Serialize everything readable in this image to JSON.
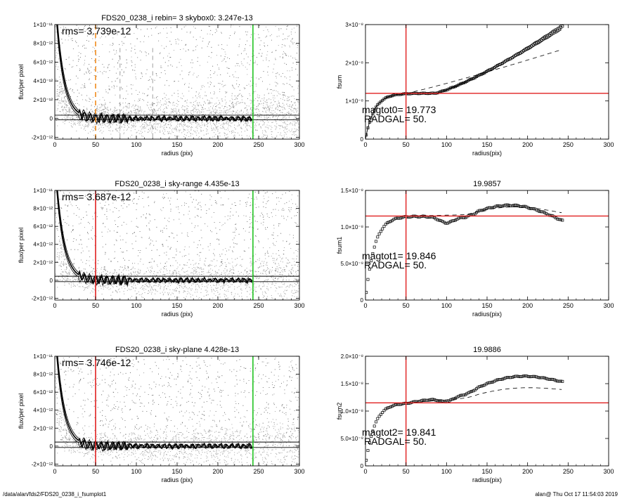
{
  "footer": {
    "path": "/data/alan/fds2/FDS20_0238_i_fsumplot1",
    "stamp": "alan@  Thu Oct 17 11:54:03 2019"
  },
  "colors": {
    "scatter": "#a9a9a9",
    "red": "#e02020",
    "green": "#22c422",
    "orange": "#f08a1c",
    "gray_dash": "#888888"
  },
  "chart_data": [
    {
      "id": "left1",
      "type": "scatter",
      "title": "FDS20_0238_i rebin= 3    skybox0:  3.247e-13",
      "xlabel": "radius (pix)",
      "ylabel": "flux/per pixel",
      "xlim": [
        0,
        300
      ],
      "ylim": [
        -2.2e-12,
        1e-11
      ],
      "xticks": [
        0,
        50,
        100,
        150,
        200,
        250,
        300
      ],
      "yticks": [
        {
          "v": -2e-12,
          "label": "-2×10⁻¹²"
        },
        {
          "v": 0,
          "label": "0"
        },
        {
          "v": 2e-12,
          "label": "2×10⁻¹²"
        },
        {
          "v": 4e-12,
          "label": "4×10⁻¹²"
        },
        {
          "v": 6e-12,
          "label": "6×10⁻¹²"
        },
        {
          "v": 8e-12,
          "label": "8×10⁻¹²"
        },
        {
          "v": 1e-11,
          "label": "1×10⁻¹¹"
        }
      ],
      "annotation": "rms= 3.739e-12",
      "band": [
        -1.5e-13,
        3.5e-13
      ],
      "vlines": [
        {
          "x": 50,
          "color": "orange",
          "style": "dashed"
        },
        {
          "x": 80,
          "color": "gray_dash",
          "style": "dashed",
          "ymin": 7.5e-12
        },
        {
          "x": 120,
          "color": "gray_dash",
          "style": "dashed",
          "ymin": 7.5e-12
        },
        {
          "x": 243,
          "color": "green",
          "style": "solid"
        }
      ]
    },
    {
      "id": "right1",
      "type": "scatter",
      "title": "",
      "xlabel": "radius(pix)",
      "ylabel": "fsum",
      "xlim": [
        0,
        300
      ],
      "ylim": [
        0,
        3e-08
      ],
      "xticks": [
        0,
        50,
        100,
        150,
        200,
        250,
        300
      ],
      "yticks": [
        {
          "v": 0,
          "label": "0"
        },
        {
          "v": 1e-08,
          "label": "1×10⁻⁸"
        },
        {
          "v": 2e-08,
          "label": "2×10⁻⁸"
        },
        {
          "v": 3e-08,
          "label": "3×10⁻⁸"
        }
      ],
      "hline": 1.2e-08,
      "vline": 50,
      "annotations": [
        "magtot0=  19.773",
        "RADGAL=     50."
      ],
      "plateau": 1.2e-08,
      "end_value": 2.95e-08,
      "dashed_end": 2.35e-08,
      "bump": 0
    },
    {
      "id": "left2",
      "type": "scatter",
      "title": "FDS20_0238_i sky-range  4.435e-13",
      "xlabel": "radius (pix)",
      "ylabel": "flux/per pixel",
      "xlim": [
        0,
        300
      ],
      "ylim": [
        -2.2e-12,
        1e-11
      ],
      "xticks": [
        0,
        50,
        100,
        150,
        200,
        250,
        300
      ],
      "yticks": [
        {
          "v": -2e-12,
          "label": "-2×10⁻¹²"
        },
        {
          "v": 0,
          "label": "0"
        },
        {
          "v": 2e-12,
          "label": "2×10⁻¹²"
        },
        {
          "v": 4e-12,
          "label": "4×10⁻¹²"
        },
        {
          "v": 6e-12,
          "label": "6×10⁻¹²"
        },
        {
          "v": 8e-12,
          "label": "8×10⁻¹²"
        },
        {
          "v": 1e-11,
          "label": "1×10⁻¹¹"
        }
      ],
      "annotation": "rms= 3.687e-12",
      "band": [
        -1.5e-13,
        4.5e-13
      ],
      "vlines": [
        {
          "x": 50,
          "color": "red",
          "style": "solid"
        },
        {
          "x": 243,
          "color": "green",
          "style": "solid"
        }
      ]
    },
    {
      "id": "right2",
      "type": "scatter",
      "title": "19.9857",
      "xlabel": "radius(pix)",
      "ylabel": "fsum1",
      "xlim": [
        0,
        300
      ],
      "ylim": [
        0,
        1.5e-08
      ],
      "xticks": [
        0,
        50,
        100,
        150,
        200,
        250,
        300
      ],
      "yticks": [
        {
          "v": 0,
          "label": "0"
        },
        {
          "v": 5e-09,
          "label": "5.0×10⁻⁹"
        },
        {
          "v": 1e-08,
          "label": "1.0×10⁻⁸"
        },
        {
          "v": 1.5e-08,
          "label": "1.5×10⁻⁸"
        }
      ],
      "hline": 1.15e-08,
      "vline": 50,
      "annotations": [
        "magtot1=  19.846",
        "RADGAL=     50."
      ],
      "plateau": 1.15e-08,
      "end_value": 1.1e-08,
      "dashed_end": 1.2e-08,
      "bump": 1.8e-09
    },
    {
      "id": "left3",
      "type": "scatter",
      "title": "FDS20_0238_i sky-plane  4.428e-13",
      "xlabel": "radius (pix)",
      "ylabel": "flux/per pixel",
      "xlim": [
        0,
        300
      ],
      "ylim": [
        -2.2e-12,
        1e-11
      ],
      "xticks": [
        0,
        50,
        100,
        150,
        200,
        250,
        300
      ],
      "yticks": [
        {
          "v": -2e-12,
          "label": "-2×10⁻¹²"
        },
        {
          "v": 0,
          "label": "0"
        },
        {
          "v": 2e-12,
          "label": "2×10⁻¹²"
        },
        {
          "v": 4e-12,
          "label": "4×10⁻¹²"
        },
        {
          "v": 6e-12,
          "label": "6×10⁻¹²"
        },
        {
          "v": 8e-12,
          "label": "8×10⁻¹²"
        },
        {
          "v": 1e-11,
          "label": "1×10⁻¹¹"
        }
      ],
      "annotation": "rms= 3.746e-12",
      "band": [
        -1.5e-13,
        4.5e-13
      ],
      "vlines": [
        {
          "x": 50,
          "color": "red",
          "style": "solid"
        },
        {
          "x": 243,
          "color": "green",
          "style": "solid"
        }
      ]
    },
    {
      "id": "right3",
      "type": "scatter",
      "title": "19.9886",
      "xlabel": "radius(pix)",
      "ylabel": "fsum2",
      "xlim": [
        0,
        300
      ],
      "ylim": [
        0,
        2e-08
      ],
      "xticks": [
        0,
        50,
        100,
        150,
        200,
        250,
        300
      ],
      "yticks": [
        {
          "v": 0,
          "label": "0"
        },
        {
          "v": 5e-09,
          "label": "5.0×10⁻⁹"
        },
        {
          "v": 1e-08,
          "label": "1.0×10⁻⁸"
        },
        {
          "v": 1.5e-08,
          "label": "1.5×10⁻⁸"
        },
        {
          "v": 2e-08,
          "label": "2.0×10⁻⁸"
        }
      ],
      "hline": 1.15e-08,
      "vline": 50,
      "annotations": [
        "magtot2=  19.841",
        "RADGAL=     50."
      ],
      "plateau": 1.15e-08,
      "end_value": 1.55e-08,
      "dashed_end": 1.4e-08,
      "bump": 2e-09
    }
  ]
}
